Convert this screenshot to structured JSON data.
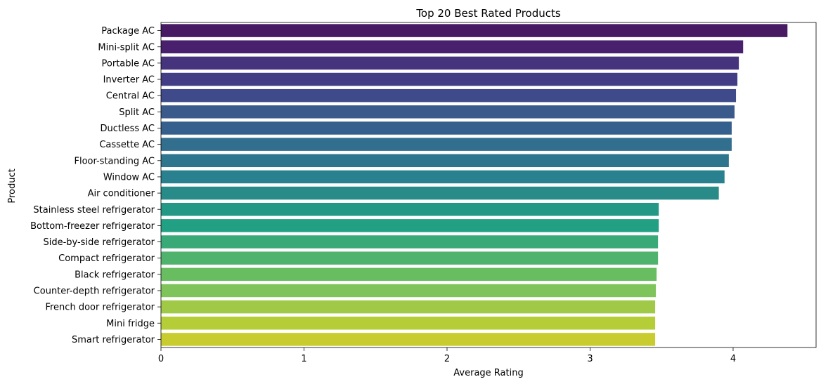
{
  "chart_data": {
    "type": "bar",
    "orientation": "horizontal",
    "title": "Top 20 Best Rated Products",
    "xlabel": "Average Rating",
    "ylabel": "Product",
    "xlim": [
      0,
      4.58
    ],
    "xticks": [
      0,
      1,
      2,
      3,
      4
    ],
    "grid": false,
    "legend": "none",
    "categories": [
      "Package AC",
      "Mini-split AC",
      "Portable AC",
      "Inverter AC",
      "Central AC",
      "Split AC",
      "Ductless AC",
      "Cassette AC",
      "Floor-standing AC",
      "Window AC",
      "Air conditioner",
      "Stainless steel refrigerator",
      "Bottom-freezer refrigerator",
      "Side-by-side refrigerator",
      "Compact refrigerator",
      "Black refrigerator",
      "Counter-depth refrigerator",
      "French door refrigerator",
      "Mini fridge",
      "Smart refrigerator"
    ],
    "values": [
      4.38,
      4.07,
      4.04,
      4.03,
      4.02,
      4.01,
      3.99,
      3.99,
      3.97,
      3.94,
      3.9,
      3.48,
      3.48,
      3.475,
      3.475,
      3.465,
      3.46,
      3.455,
      3.455,
      3.455
    ],
    "colors": [
      "#471a63",
      "#48206d",
      "#45337d",
      "#423d84",
      "#3e4a89",
      "#3a5a8c",
      "#355f8d",
      "#326e8e",
      "#2e768e",
      "#29808e",
      "#288b88",
      "#239886",
      "#22a083",
      "#38a977",
      "#4fb36d",
      "#67bd60",
      "#7fc45a",
      "#a0c947",
      "#b5cd36",
      "#c9cc2e"
    ]
  }
}
